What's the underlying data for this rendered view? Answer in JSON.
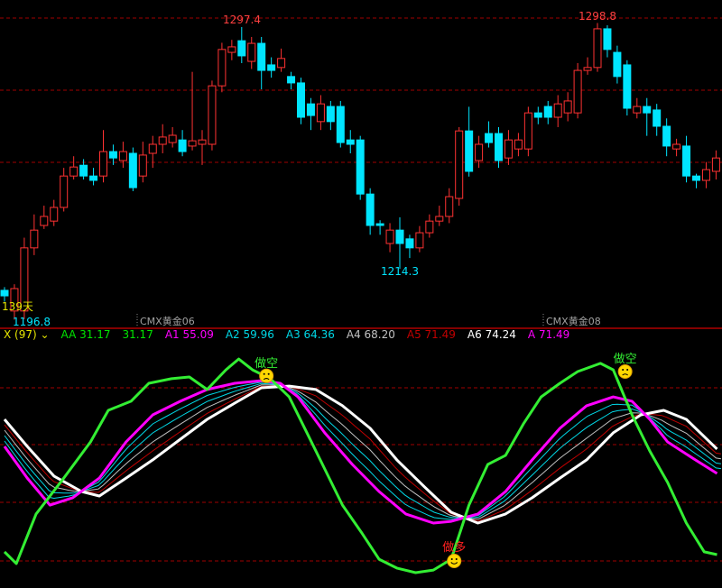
{
  "chart_data": [
    {
      "type": "candlestick",
      "instrument_labels": [
        "CMX黄金06",
        "CMX黄金08"
      ],
      "annotations": {
        "high1": "1297.4",
        "high2": "1298.8",
        "low1": "1214.3",
        "low0": "1196.8",
        "days": "139天"
      },
      "colors": {
        "up": "#ff3232",
        "down": "#00e5ff",
        "grid": "#a00000"
      },
      "ohlc": [
        [
          1206.9,
          1208,
          1203,
          1205.0
        ],
        [
          1199.8,
          1209,
          1196.8,
          1207.5
        ],
        [
          1199.8,
          1225,
          1197,
          1221.5
        ],
        [
          1221.5,
          1233,
          1219,
          1227.6
        ],
        [
          1229.2,
          1236,
          1228,
          1232.3
        ],
        [
          1230.7,
          1238,
          1229,
          1235.4
        ],
        [
          1235.4,
          1249,
          1234,
          1246.2
        ],
        [
          1246.2,
          1253,
          1245,
          1249.3
        ],
        [
          1249.9,
          1252,
          1245,
          1246.2
        ],
        [
          1246.2,
          1249,
          1243,
          1244.7
        ],
        [
          1246.2,
          1262,
          1244,
          1254.6
        ],
        [
          1254.6,
          1257,
          1250,
          1252.4
        ],
        [
          1251.5,
          1258,
          1249,
          1254.6
        ],
        [
          1254.0,
          1256,
          1241,
          1242.2
        ],
        [
          1246.2,
          1258,
          1244,
          1253.4
        ],
        [
          1254.0,
          1260,
          1249,
          1257.1
        ],
        [
          1257.1,
          1264,
          1254,
          1259.6
        ],
        [
          1257.7,
          1263,
          1256,
          1260.2
        ],
        [
          1258.6,
          1262,
          1253,
          1254.6
        ],
        [
          1256.5,
          1282,
          1255,
          1258.3
        ],
        [
          1257.1,
          1262,
          1250,
          1258.6
        ],
        [
          1257.1,
          1279,
          1255,
          1277.2
        ],
        [
          1277.2,
          1292,
          1275,
          1289.7
        ],
        [
          1288.7,
          1293,
          1286,
          1290.6
        ],
        [
          1292.7,
          1297.4,
          1285,
          1287.5
        ],
        [
          1285.6,
          1294,
          1283,
          1291.8
        ],
        [
          1291.8,
          1294,
          1276,
          1282.5
        ],
        [
          1284.4,
          1287,
          1280,
          1282.5
        ],
        [
          1283.5,
          1290,
          1282,
          1286.6
        ],
        [
          1280.4,
          1282,
          1276,
          1278.2
        ],
        [
          1278.2,
          1280,
          1264,
          1266.4
        ],
        [
          1271.0,
          1273,
          1262,
          1267.0
        ],
        [
          1264.9,
          1274,
          1262,
          1271.0
        ],
        [
          1270.1,
          1272,
          1262,
          1264.9
        ],
        [
          1270.1,
          1272,
          1256,
          1257.7
        ],
        [
          1258.6,
          1262,
          1254,
          1257.1
        ],
        [
          1258.6,
          1260,
          1238,
          1240.0
        ],
        [
          1240.0,
          1242,
          1226,
          1229.2
        ],
        [
          1229.8,
          1231,
          1226,
          1229.2
        ],
        [
          1223.0,
          1230,
          1220,
          1227.6
        ],
        [
          1227.6,
          1232,
          1214.3,
          1223.0
        ],
        [
          1224.6,
          1226,
          1218,
          1221.5
        ],
        [
          1221.5,
          1229,
          1220,
          1226.7
        ],
        [
          1226.7,
          1233,
          1225,
          1230.7
        ],
        [
          1230.7,
          1236,
          1229,
          1232.3
        ],
        [
          1232.3,
          1242,
          1230,
          1239.1
        ],
        [
          1238.5,
          1263,
          1236,
          1261.7
        ],
        [
          1261.7,
          1270,
          1246,
          1247.8
        ],
        [
          1251.5,
          1260,
          1249,
          1257.1
        ],
        [
          1260.8,
          1265,
          1256,
          1257.7
        ],
        [
          1260.8,
          1263,
          1249,
          1251.5
        ],
        [
          1252.4,
          1262,
          1250,
          1258.6
        ],
        [
          1255.5,
          1261,
          1253,
          1258.6
        ],
        [
          1255.5,
          1270,
          1253,
          1267.9
        ],
        [
          1267.9,
          1270,
          1264,
          1266.4
        ],
        [
          1270.1,
          1272,
          1264,
          1266.4
        ],
        [
          1266.4,
          1274,
          1263,
          1271.0
        ],
        [
          1267.9,
          1275,
          1265,
          1272.0
        ],
        [
          1267.9,
          1285,
          1266,
          1282.5
        ],
        [
          1282.5,
          1287,
          1281,
          1283.5
        ],
        [
          1283.5,
          1298.8,
          1282,
          1296.8
        ],
        [
          1296.8,
          1298,
          1287,
          1289.7
        ],
        [
          1288.7,
          1291,
          1278,
          1280.4
        ],
        [
          1284.4,
          1286,
          1267,
          1269.5
        ],
        [
          1267.9,
          1273,
          1266,
          1270.1
        ],
        [
          1270.1,
          1273,
          1260,
          1267.9
        ],
        [
          1268.9,
          1271,
          1260,
          1263.3
        ],
        [
          1263.3,
          1266,
          1253,
          1256.5
        ],
        [
          1255.5,
          1259,
          1253,
          1257.1
        ],
        [
          1256.5,
          1260,
          1244,
          1246.2
        ],
        [
          1246.2,
          1247,
          1242,
          1244.7
        ],
        [
          1244.7,
          1251,
          1242,
          1248.4
        ],
        [
          1247.8,
          1255,
          1245,
          1252.4
        ]
      ]
    },
    {
      "type": "line",
      "legend": [
        {
          "label": "X (97)",
          "color": "#e6e600"
        },
        {
          "label": "AA 31.17",
          "color": "#00e600"
        },
        {
          "label": "31.17",
          "color": "#00e600"
        },
        {
          "label": "A1 55.09",
          "color": "#ff00ff"
        },
        {
          "label": "A2 59.96",
          "color": "#00d8e6"
        },
        {
          "label": "A3 64.36",
          "color": "#00d8e6"
        },
        {
          "label": "A4 68.20",
          "color": "#c0c0c0"
        },
        {
          "label": "A5 71.49",
          "color": "#c00000"
        },
        {
          "label": "A6 74.24",
          "color": "#ffffff"
        },
        {
          "label": "A 71.49",
          "color": "#ff00ff"
        }
      ],
      "series": [
        {
          "name": "AA",
          "color": "#33ee33",
          "points": [
            [
              0,
              11.7
            ],
            [
              1.2,
              6.3
            ],
            [
              3.2,
              29.2
            ],
            [
              6,
              45.8
            ],
            [
              8.7,
              62.5
            ],
            [
              10.5,
              77.1
            ],
            [
              12.8,
              81.3
            ],
            [
              14.6,
              89.6
            ],
            [
              16.9,
              91.7
            ],
            [
              18.7,
              92.5
            ],
            [
              20.5,
              86.7
            ],
            [
              22.4,
              95.8
            ],
            [
              23.7,
              100.8
            ],
            [
              25.1,
              95.8
            ],
            [
              26.9,
              91.7
            ],
            [
              28.8,
              83.3
            ],
            [
              30.6,
              66.7
            ],
            [
              32.4,
              50
            ],
            [
              34.2,
              33.3
            ],
            [
              36.1,
              20.8
            ],
            [
              37.9,
              8.3
            ],
            [
              39.7,
              4.2
            ],
            [
              41.6,
              2.1
            ],
            [
              43.4,
              3.3
            ],
            [
              45.2,
              8.3
            ],
            [
              46.1,
              20.8
            ],
            [
              47,
              33.3
            ],
            [
              48.9,
              52.1
            ],
            [
              50.7,
              56.3
            ],
            [
              52.5,
              70.8
            ],
            [
              54.3,
              83.3
            ],
            [
              56.2,
              89.6
            ],
            [
              58,
              95
            ],
            [
              60.3,
              98.8
            ],
            [
              61.6,
              95.8
            ],
            [
              63.5,
              75
            ],
            [
              65.3,
              58.3
            ],
            [
              67.1,
              43.8
            ],
            [
              69,
              25
            ],
            [
              70.8,
              11.7
            ],
            [
              72.1,
              10.4
            ]
          ]
        },
        {
          "name": "A1",
          "color": "#ff00ff",
          "points": [
            [
              0,
              60.4
            ],
            [
              2.3,
              45.8
            ],
            [
              4.6,
              33.3
            ],
            [
              6.9,
              36.7
            ],
            [
              9.6,
              45.8
            ],
            [
              12.3,
              62.5
            ],
            [
              15,
              75
            ],
            [
              17.8,
              81.3
            ],
            [
              20.5,
              86.7
            ],
            [
              23.3,
              89.6
            ],
            [
              26,
              90.8
            ],
            [
              27.9,
              89.6
            ],
            [
              29.7,
              83.3
            ],
            [
              32.4,
              66.7
            ],
            [
              35.2,
              52.1
            ],
            [
              37.9,
              39.6
            ],
            [
              40.6,
              29.2
            ],
            [
              43.4,
              25
            ],
            [
              45.2,
              25.8
            ],
            [
              47.9,
              29.2
            ],
            [
              50.7,
              39.6
            ],
            [
              53.4,
              54.2
            ],
            [
              56.2,
              68.8
            ],
            [
              58.9,
              79.2
            ],
            [
              61.6,
              83.3
            ],
            [
              63.5,
              81.3
            ],
            [
              65.3,
              72.9
            ],
            [
              67.1,
              62.5
            ],
            [
              69.9,
              54.2
            ],
            [
              72.1,
              47.9
            ]
          ]
        },
        {
          "name": "A6",
          "color": "#ffffff",
          "points": [
            [
              0,
              72.9
            ],
            [
              2.3,
              60.4
            ],
            [
              5,
              46.7
            ],
            [
              7.8,
              39.6
            ],
            [
              9.6,
              37.5
            ],
            [
              12.3,
              45.8
            ],
            [
              15,
              54.2
            ],
            [
              17.8,
              63.75
            ],
            [
              20.5,
              72.9
            ],
            [
              23.3,
              80.4
            ],
            [
              26,
              87.5
            ],
            [
              28.8,
              88.3
            ],
            [
              31.5,
              86.7
            ],
            [
              34.2,
              79.2
            ],
            [
              37,
              68.8
            ],
            [
              39.7,
              54.2
            ],
            [
              42.5,
              41.7
            ],
            [
              45.2,
              30
            ],
            [
              47.9,
              25
            ],
            [
              50.7,
              29.2
            ],
            [
              53.4,
              36.7
            ],
            [
              56.2,
              45.8
            ],
            [
              58.9,
              54.2
            ],
            [
              61.6,
              66.7
            ],
            [
              64.4,
              75
            ],
            [
              66.7,
              77.1
            ],
            [
              69,
              72.9
            ],
            [
              72.1,
              59.2
            ]
          ]
        }
      ],
      "signals": [
        {
          "label": "做空",
          "bar": 26.5,
          "value": 93,
          "color": "#33ee33",
          "face": "sad"
        },
        {
          "label": "做多",
          "bar": 45.5,
          "value": 7.5,
          "color": "#ff2020",
          "face": "happy"
        },
        {
          "label": "做空",
          "bar": 62.8,
          "value": 95,
          "color": "#33ee33",
          "face": "sad"
        }
      ]
    }
  ]
}
